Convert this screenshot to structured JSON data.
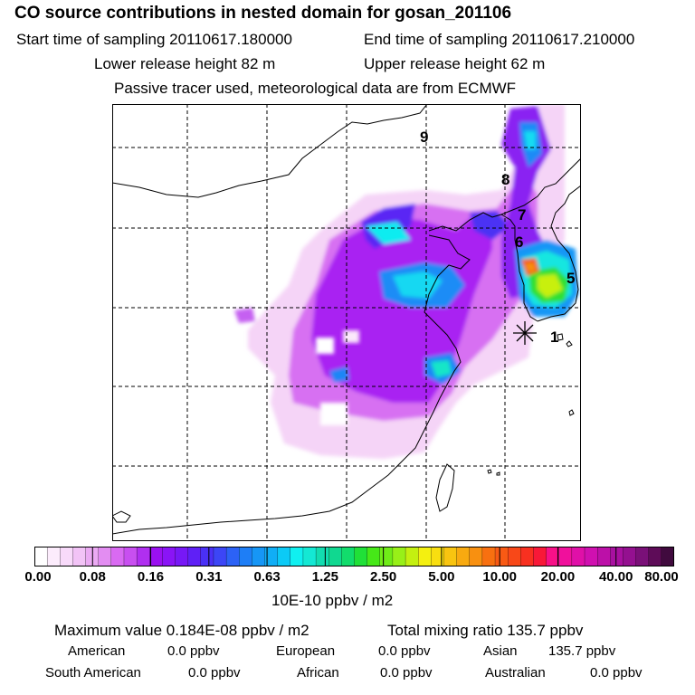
{
  "header": {
    "title": "CO  source contributions in nested domain for gosan_201106",
    "start_label": "Start time of sampling 20110617.180000",
    "end_label": "End time of sampling 20110617.210000",
    "lower_label": "Lower release height   82 m",
    "upper_label": "Upper release height   62 m",
    "tracer_label": "Passive tracer used, meteorological data are from ECMWF"
  },
  "map": {
    "markers": [
      {
        "id": "1",
        "label": "1"
      },
      {
        "id": "5",
        "label": "5"
      },
      {
        "id": "6",
        "label": "6"
      },
      {
        "id": "7",
        "label": "7"
      },
      {
        "id": "8",
        "label": "8"
      },
      {
        "id": "9",
        "label": "9"
      }
    ],
    "release_site_symbol": "asterisk"
  },
  "colorbar": {
    "ticks": [
      "0.00",
      "0.08",
      "0.16",
      "0.31",
      "0.63",
      "1.25",
      "2.50",
      "5.00",
      "10.00",
      "20.00",
      "40.00",
      "80.00"
    ],
    "colors": [
      "#ffffff",
      "#fcecfc",
      "#f8dafa",
      "#f2c3f6",
      "#ebaaf3",
      "#e38df2",
      "#d96af2",
      "#c84ff0",
      "#b02ff0",
      "#9a10f0",
      "#8a14f6",
      "#7718f6",
      "#5f20f6",
      "#4a30f6",
      "#3c46f6",
      "#2c62f6",
      "#1e7ef6",
      "#1696f6",
      "#10aef6",
      "#0ccaf6",
      "#10f0f0",
      "#14e8d4",
      "#12dcb0",
      "#10d890",
      "#12dc6c",
      "#20e038",
      "#46e818",
      "#70ec18",
      "#98f018",
      "#c4f010",
      "#f4f010",
      "#f8de10",
      "#f8c410",
      "#f8aa10",
      "#f89010",
      "#f87010",
      "#f85a14",
      "#f84818",
      "#f83020",
      "#f81838",
      "#f81088",
      "#f0109c",
      "#e010a8",
      "#d010b0",
      "#bc10a8",
      "#a810a0",
      "#941090",
      "#7a1078",
      "#5e0c58",
      "#400a3e"
    ],
    "unit_label": "10E-10 ppbv / m2"
  },
  "stats": {
    "max_value": "Maximum value  0.184E-08 ppbv / m2",
    "total_mixing": "Total mixing ratio      135.7 ppbv",
    "american_label": "American",
    "american_value": "0.0 ppbv",
    "european_label": "European",
    "european_value": "0.0 ppbv",
    "asian_label": "Asian",
    "asian_value": "135.7 ppbv",
    "south_american_label": "South American",
    "south_american_value": "0.0 ppbv",
    "african_label": "African",
    "african_value": "0.0 ppbv",
    "australian_label": "Australian",
    "australian_value": "0.0 ppbv"
  }
}
